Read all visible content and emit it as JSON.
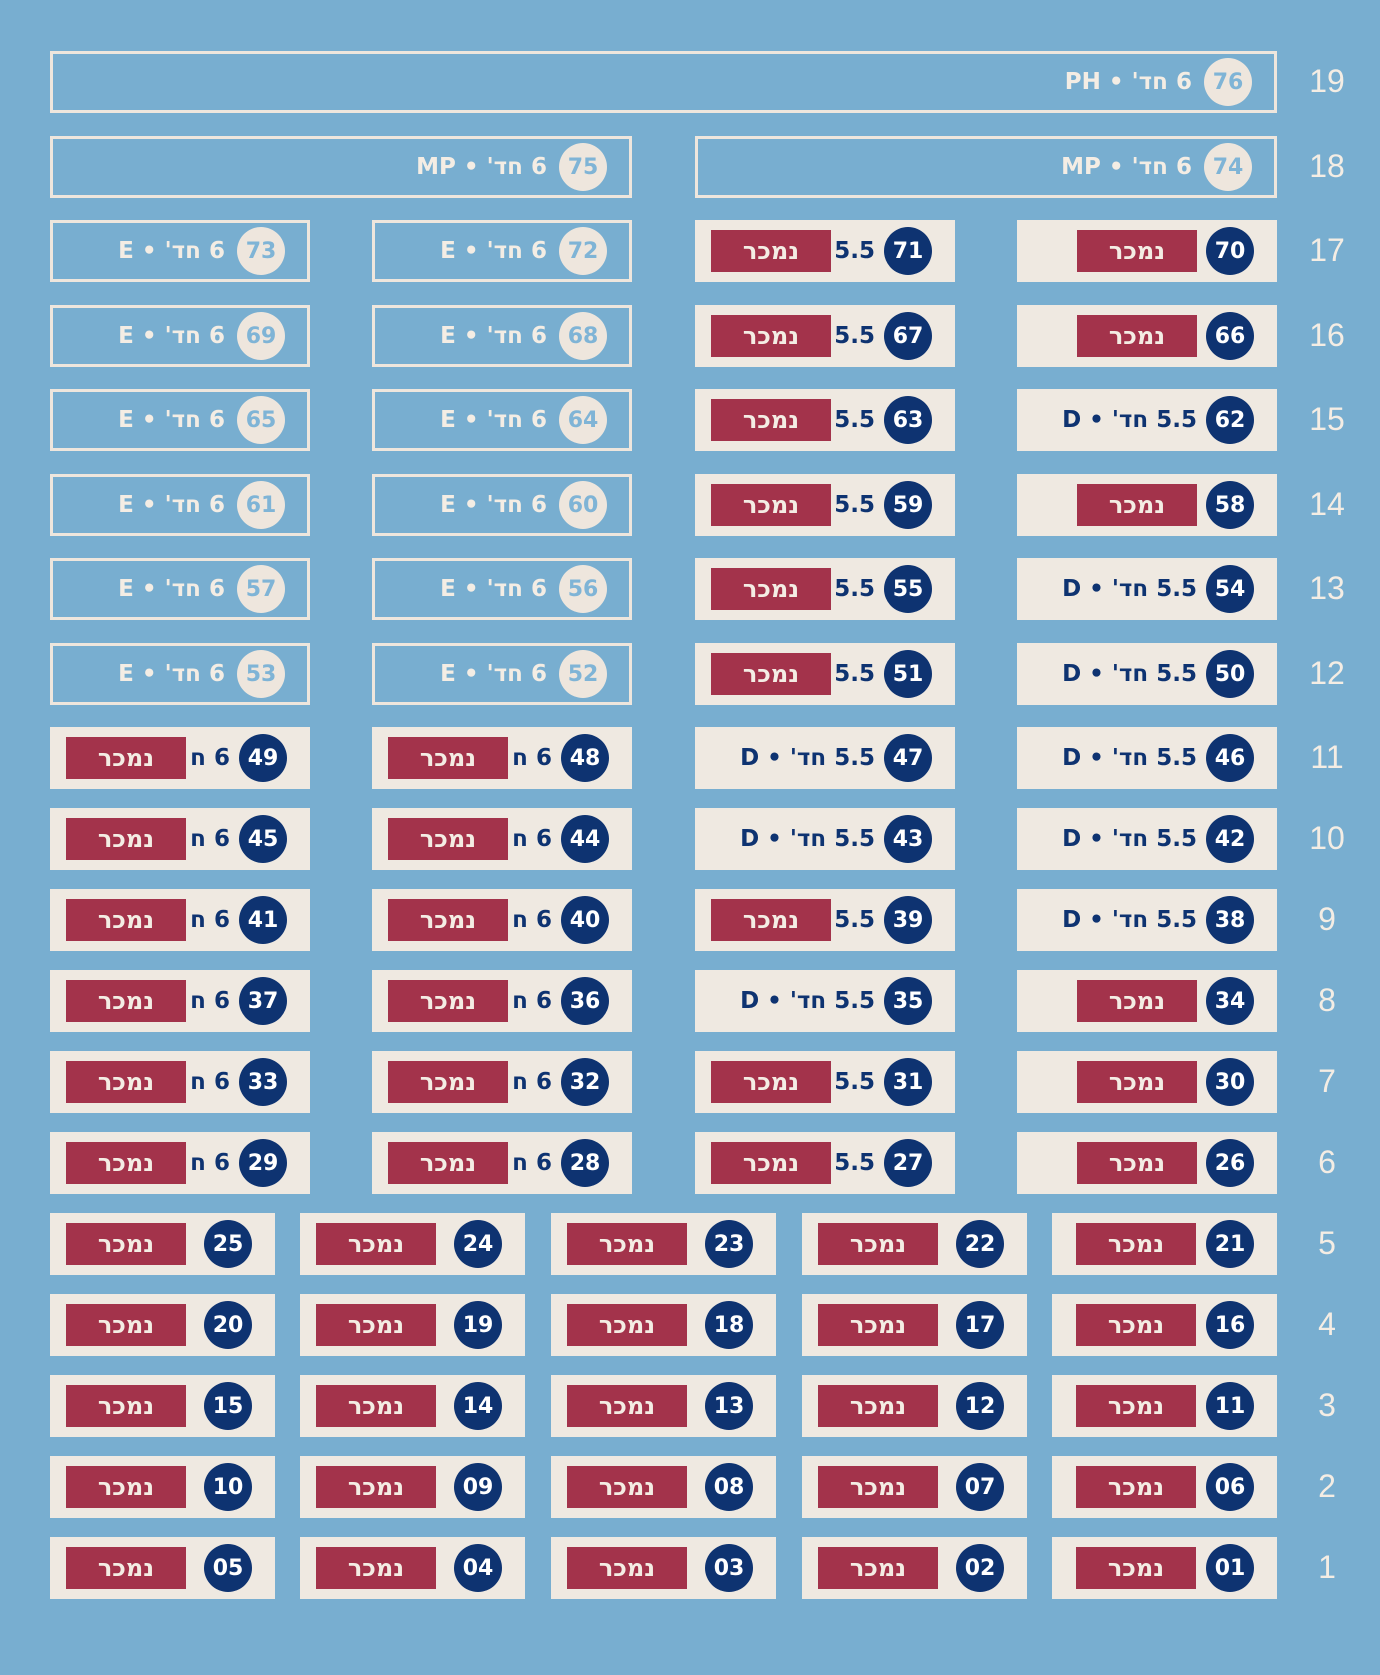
{
  "colors": {
    "background": "#78aed0",
    "available_border": "#eee6dd",
    "sold_box": "#efe9e1",
    "sold_badge": "#a3334b",
    "unit_circle_sold": "#0e3371"
  },
  "floors": [
    "1",
    "2",
    "3",
    "4",
    "5",
    "6",
    "7",
    "8",
    "9",
    "10",
    "11",
    "12",
    "13",
    "14",
    "15",
    "16",
    "17",
    "18",
    "19"
  ],
  "units": [
    {
      "n": "01",
      "floor": 1,
      "type": "",
      "status": "sold",
      "sold_label": "נמכר"
    },
    {
      "n": "02",
      "floor": 1,
      "type": "",
      "status": "sold",
      "sold_label": "נמכר"
    },
    {
      "n": "03",
      "floor": 1,
      "type": "",
      "status": "sold",
      "sold_label": "נמכר"
    },
    {
      "n": "04",
      "floor": 1,
      "type": "",
      "status": "sold",
      "sold_label": "נמכר"
    },
    {
      "n": "05",
      "floor": 1,
      "type": "",
      "status": "sold",
      "sold_label": "נמכר"
    },
    {
      "n": "06",
      "floor": 2,
      "type": "",
      "status": "sold",
      "sold_label": "נמכר"
    },
    {
      "n": "07",
      "floor": 2,
      "type": "",
      "status": "sold",
      "sold_label": "נמכר"
    },
    {
      "n": "08",
      "floor": 2,
      "type": "",
      "status": "sold",
      "sold_label": "נמכר"
    },
    {
      "n": "09",
      "floor": 2,
      "type": "",
      "status": "sold",
      "sold_label": "נמכר"
    },
    {
      "n": "10",
      "floor": 2,
      "type": "",
      "status": "sold",
      "sold_label": "נמכר"
    },
    {
      "n": "11",
      "floor": 3,
      "type": "",
      "status": "sold",
      "sold_label": "נמכר"
    },
    {
      "n": "12",
      "floor": 3,
      "type": "",
      "status": "sold",
      "sold_label": "נמכר"
    },
    {
      "n": "13",
      "floor": 3,
      "type": "",
      "status": "sold",
      "sold_label": "נמכר"
    },
    {
      "n": "14",
      "floor": 3,
      "type": "",
      "status": "sold",
      "sold_label": "נמכר"
    },
    {
      "n": "15",
      "floor": 3,
      "type": "",
      "status": "sold",
      "sold_label": "נמכר"
    },
    {
      "n": "16",
      "floor": 4,
      "type": "",
      "status": "sold",
      "sold_label": "נמכר"
    },
    {
      "n": "17",
      "floor": 4,
      "type": "",
      "status": "sold",
      "sold_label": "נמכר"
    },
    {
      "n": "18",
      "floor": 4,
      "type": "",
      "status": "sold",
      "sold_label": "נמכר"
    },
    {
      "n": "19",
      "floor": 4,
      "type": "",
      "status": "sold",
      "sold_label": "נמכר"
    },
    {
      "n": "20",
      "floor": 4,
      "type": "",
      "status": "sold",
      "sold_label": "נמכר"
    },
    {
      "n": "21",
      "floor": 5,
      "type": "",
      "status": "sold",
      "sold_label": "נמכר"
    },
    {
      "n": "22",
      "floor": 5,
      "type": "",
      "status": "sold",
      "sold_label": "נמכר"
    },
    {
      "n": "23",
      "floor": 5,
      "type": "",
      "status": "sold",
      "sold_label": "נמכר"
    },
    {
      "n": "24",
      "floor": 5,
      "type": "",
      "status": "sold",
      "sold_label": "נמכר"
    },
    {
      "n": "25",
      "floor": 5,
      "type": "",
      "status": "sold",
      "sold_label": "נמכר"
    },
    {
      "n": "26",
      "floor": 6,
      "type": "",
      "status": "sold",
      "sold_label": "נמכר"
    },
    {
      "n": "27",
      "floor": 6,
      "type": "5.5",
      "status": "sold",
      "sold_label": "נמכר"
    },
    {
      "n": "28",
      "floor": 6,
      "type": "6 ח",
      "status": "sold",
      "sold_label": "נמכר"
    },
    {
      "n": "29",
      "floor": 6,
      "type": "6 ח",
      "status": "sold",
      "sold_label": "נמכר"
    },
    {
      "n": "30",
      "floor": 7,
      "type": "",
      "status": "sold",
      "sold_label": "נמכר"
    },
    {
      "n": "31",
      "floor": 7,
      "type": "5.5",
      "status": "sold",
      "sold_label": "נמכר"
    },
    {
      "n": "32",
      "floor": 7,
      "type": "6 ח",
      "status": "sold",
      "sold_label": "נמכר"
    },
    {
      "n": "33",
      "floor": 7,
      "type": "6 ח",
      "status": "sold",
      "sold_label": "נמכר"
    },
    {
      "n": "34",
      "floor": 8,
      "type": "",
      "status": "sold",
      "sold_label": "נמכר"
    },
    {
      "n": "35",
      "floor": 8,
      "type": "5.5 חד' • D",
      "status": "unsold",
      "sold_label": ""
    },
    {
      "n": "36",
      "floor": 8,
      "type": "6 ח",
      "status": "sold",
      "sold_label": "נמכר"
    },
    {
      "n": "37",
      "floor": 8,
      "type": "6 ח",
      "status": "sold",
      "sold_label": "נמכר"
    },
    {
      "n": "38",
      "floor": 9,
      "type": "5.5 חד' • D",
      "status": "unsold",
      "sold_label": ""
    },
    {
      "n": "39",
      "floor": 9,
      "type": "5.5",
      "status": "sold",
      "sold_label": "נמכר"
    },
    {
      "n": "40",
      "floor": 9,
      "type": "6 ח",
      "status": "sold",
      "sold_label": "נמכר"
    },
    {
      "n": "41",
      "floor": 9,
      "type": "6 ח",
      "status": "sold",
      "sold_label": "נמכר"
    },
    {
      "n": "42",
      "floor": 10,
      "type": "5.5 חד' • D",
      "status": "unsold",
      "sold_label": ""
    },
    {
      "n": "43",
      "floor": 10,
      "type": "5.5 חד' • D",
      "status": "unsold",
      "sold_label": ""
    },
    {
      "n": "44",
      "floor": 10,
      "type": "6 ח",
      "status": "sold",
      "sold_label": "נמכר"
    },
    {
      "n": "45",
      "floor": 10,
      "type": "6 ח",
      "status": "sold",
      "sold_label": "נמכר"
    },
    {
      "n": "46",
      "floor": 11,
      "type": "5.5 חד' • D",
      "status": "unsold",
      "sold_label": ""
    },
    {
      "n": "47",
      "floor": 11,
      "type": "5.5 חד' • D",
      "status": "unsold",
      "sold_label": ""
    },
    {
      "n": "48",
      "floor": 11,
      "type": "6 ח",
      "status": "sold",
      "sold_label": "נמכר"
    },
    {
      "n": "49",
      "floor": 11,
      "type": "6 ח",
      "status": "sold",
      "sold_label": "נמכר"
    },
    {
      "n": "50",
      "floor": 12,
      "type": "5.5 חד' • D",
      "status": "unsold",
      "sold_label": ""
    },
    {
      "n": "51",
      "floor": 12,
      "type": "5.5",
      "status": "sold",
      "sold_label": "נמכר"
    },
    {
      "n": "52",
      "floor": 12,
      "type": "6 חד' • E",
      "status": "available",
      "sold_label": ""
    },
    {
      "n": "53",
      "floor": 12,
      "type": "6 חד' • E",
      "status": "available",
      "sold_label": ""
    },
    {
      "n": "54",
      "floor": 13,
      "type": "5.5 חד' • D",
      "status": "unsold",
      "sold_label": ""
    },
    {
      "n": "55",
      "floor": 13,
      "type": "5.5",
      "status": "sold",
      "sold_label": "נמכר"
    },
    {
      "n": "56",
      "floor": 13,
      "type": "6 חד' • E",
      "status": "available",
      "sold_label": ""
    },
    {
      "n": "57",
      "floor": 13,
      "type": "6 חד' • E",
      "status": "available",
      "sold_label": ""
    },
    {
      "n": "58",
      "floor": 14,
      "type": "",
      "status": "sold",
      "sold_label": "נמכר"
    },
    {
      "n": "59",
      "floor": 14,
      "type": "5.5",
      "status": "sold",
      "sold_label": "נמכר"
    },
    {
      "n": "60",
      "floor": 14,
      "type": "6 חד' • E",
      "status": "available",
      "sold_label": ""
    },
    {
      "n": "61",
      "floor": 14,
      "type": "6 חד' • E",
      "status": "available",
      "sold_label": ""
    },
    {
      "n": "62",
      "floor": 15,
      "type": "5.5 חד' • D",
      "status": "unsold",
      "sold_label": ""
    },
    {
      "n": "63",
      "floor": 15,
      "type": "5.5",
      "status": "sold",
      "sold_label": "נמכר"
    },
    {
      "n": "64",
      "floor": 15,
      "type": "6 חד' • E",
      "status": "available",
      "sold_label": ""
    },
    {
      "n": "65",
      "floor": 15,
      "type": "6 חד' • E",
      "status": "available",
      "sold_label": ""
    },
    {
      "n": "66",
      "floor": 16,
      "type": "",
      "status": "sold",
      "sold_label": "נמכר"
    },
    {
      "n": "67",
      "floor": 16,
      "type": "5.5",
      "status": "sold",
      "sold_label": "נמכר"
    },
    {
      "n": "68",
      "floor": 16,
      "type": "6 חד' • E",
      "status": "available",
      "sold_label": ""
    },
    {
      "n": "69",
      "floor": 16,
      "type": "6 חד' • E",
      "status": "available",
      "sold_label": ""
    },
    {
      "n": "70",
      "floor": 17,
      "type": "",
      "status": "sold",
      "sold_label": "נמכר"
    },
    {
      "n": "71",
      "floor": 17,
      "type": "5.5",
      "status": "sold",
      "sold_label": "נמכר"
    },
    {
      "n": "72",
      "floor": 17,
      "type": "6 חד' • E",
      "status": "available",
      "sold_label": ""
    },
    {
      "n": "73",
      "floor": 17,
      "type": "6 חד' • E",
      "status": "available",
      "sold_label": ""
    },
    {
      "n": "74",
      "floor": 18,
      "type": "6 חד' • MP",
      "status": "available",
      "sold_label": ""
    },
    {
      "n": "75",
      "floor": 18,
      "type": "6 חד' • MP",
      "status": "available",
      "sold_label": ""
    },
    {
      "n": "76",
      "floor": 19,
      "type": "6 חד' • PH",
      "status": "available",
      "sold_label": ""
    }
  ]
}
